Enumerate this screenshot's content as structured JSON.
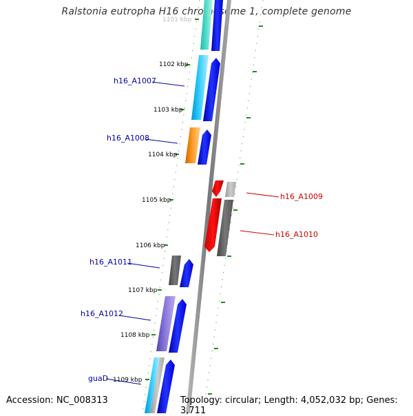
{
  "title": "Ralstonia eutropha H16 chromosome 1, complete genome",
  "footer": {
    "accession": "Accession: NC_008313",
    "topology": "Topology: circular; Length: 4,052,032 bp; Genes: 3,711"
  },
  "kbp_ticks": [
    "1101 kbp",
    "1102 kbp",
    "1103 kbp",
    "1104 kbp",
    "1105 kbp",
    "1106 kbp",
    "1107 kbp",
    "1108 kbp",
    "1109 kbp"
  ],
  "gene_labels": {
    "h16_A1007": "h16_A1007",
    "h16_A1008": "h16_A1008",
    "h16_A1009": "h16_A1009",
    "h16_A1010": "h16_A1010",
    "h16_A1011": "h16_A1011",
    "h16_A1012": "h16_A1012",
    "guaD": "guaD"
  },
  "colors": {
    "forward_label": "#0000aa",
    "reverse_label": "#cc0000",
    "cds_blue": "#0000ee",
    "orf_cyan": "#22bbee",
    "orf_teal": "#44ddcc",
    "orf_orange": "#ff9922",
    "orf_red": "#ee0000",
    "orf_gray": "#666666",
    "orf_lightgray": "#bbbbbb",
    "orf_purple": "#7766cc",
    "tick_green": "#228822",
    "backbone": "#888888"
  }
}
